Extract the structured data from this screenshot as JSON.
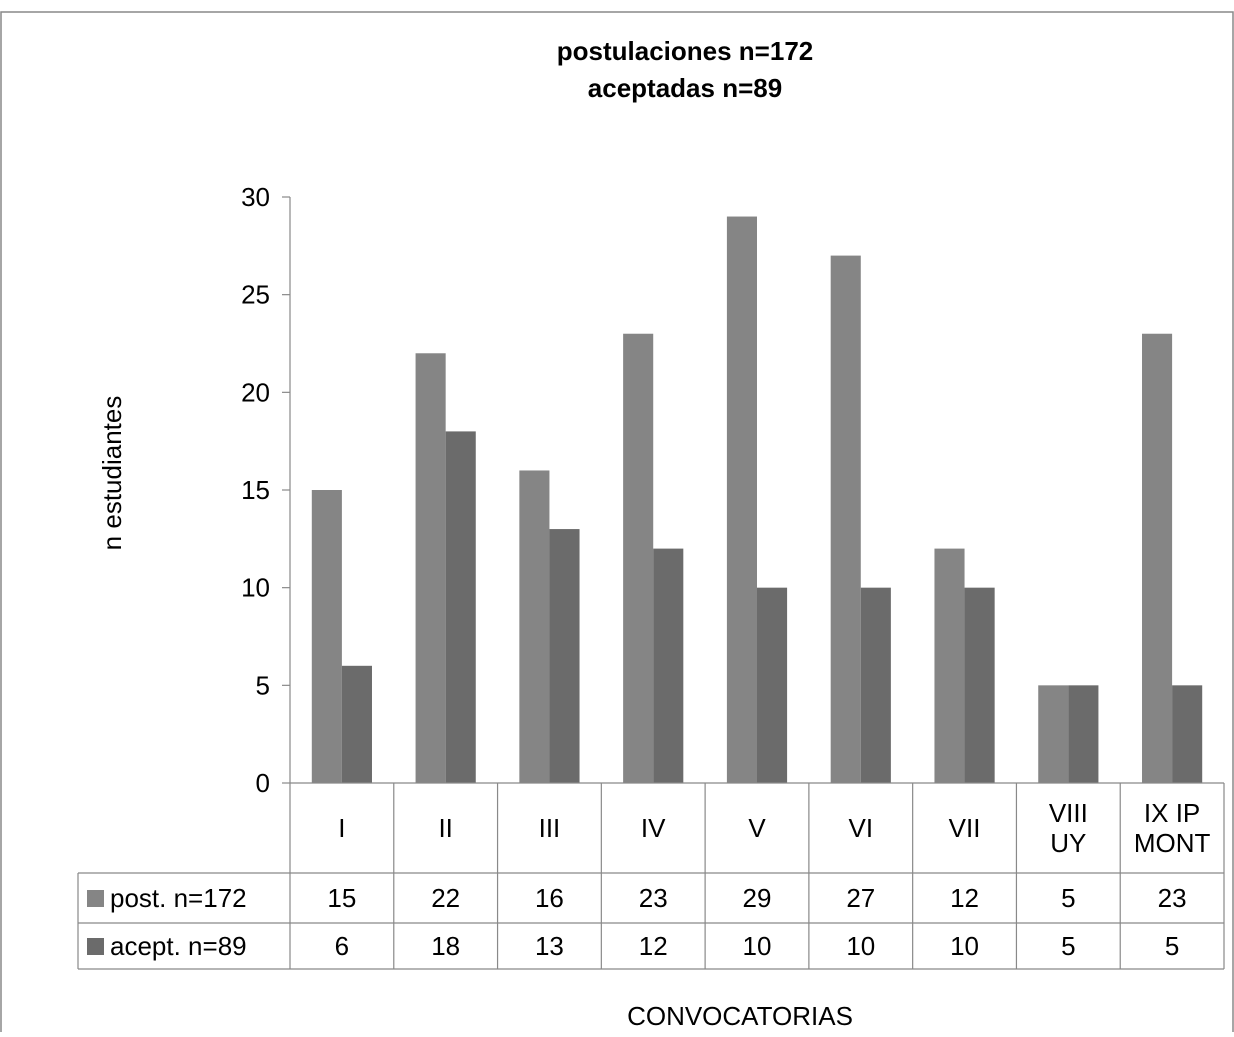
{
  "chart_data": {
    "type": "bar",
    "title_lines": [
      "postulaciones n=172",
      "aceptadas n=89"
    ],
    "xlabel": "CONVOCATORIAS",
    "ylabel": "n estudiantes",
    "ylim": [
      0,
      30
    ],
    "yticks": [
      0,
      5,
      10,
      15,
      20,
      25,
      30
    ],
    "categories": [
      [
        "I"
      ],
      [
        "II"
      ],
      [
        "III"
      ],
      [
        "IV"
      ],
      [
        "V"
      ],
      [
        "VI"
      ],
      [
        "VII"
      ],
      [
        "VIII",
        "UY"
      ],
      [
        "IX IP",
        "MONT"
      ]
    ],
    "series": [
      {
        "name": "post. n=172",
        "color": "#858585",
        "values": [
          15,
          22,
          16,
          23,
          29,
          27,
          12,
          5,
          23
        ]
      },
      {
        "name": "acept. n=89",
        "color": "#6b6b6b",
        "values": [
          6,
          18,
          13,
          12,
          10,
          10,
          10,
          5,
          5
        ]
      }
    ],
    "data_table": true,
    "legend": "in-table-left",
    "grid": false
  }
}
